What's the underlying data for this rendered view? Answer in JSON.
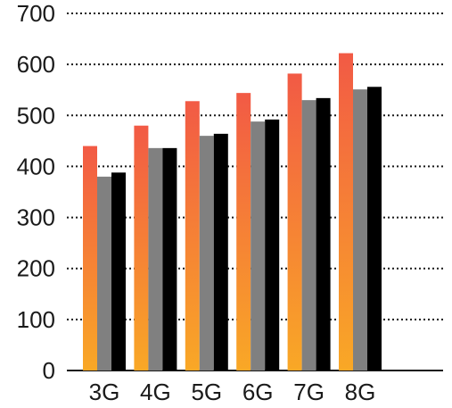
{
  "chart_data": {
    "type": "bar",
    "categories": [
      "3G",
      "4G",
      "5G",
      "6G",
      "7G",
      "8G"
    ],
    "series": [
      {
        "values": [
          440,
          480,
          528,
          544,
          582,
          622
        ],
        "color_top": "#f25a45",
        "color_bottom": "#f9a826"
      },
      {
        "values": [
          380,
          436,
          460,
          488,
          530,
          551
        ],
        "color": "#808080"
      },
      {
        "values": [
          388,
          436,
          464,
          492,
          534,
          556
        ],
        "color": "#000000"
      }
    ],
    "yticks": [
      0,
      100,
      200,
      300,
      400,
      500,
      600,
      700
    ],
    "ylim": [
      0,
      700
    ],
    "grid": true,
    "grid_style": "dotted",
    "title": "",
    "xlabel": "",
    "ylabel": ""
  }
}
